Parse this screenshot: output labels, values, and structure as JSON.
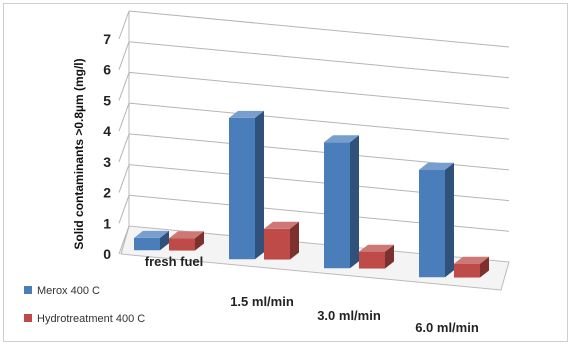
{
  "chart_data": {
    "type": "bar",
    "ylabel": "Solid contaminants >0.8µm (mg/l)",
    "ylim": [
      0,
      7
    ],
    "yticks": [
      "0",
      "1",
      "2",
      "3",
      "4",
      "5",
      "6",
      "7"
    ],
    "categories": [
      "fresh fuel",
      "1.5 ml/min",
      "3.0 ml/min",
      "6.0 ml/min"
    ],
    "series": [
      {
        "name": "Merox 400  C",
        "values": [
          0.4,
          4.6,
          4.1,
          3.5
        ],
        "color": "#4a7ebb"
      },
      {
        "name": "Hydrotreatment 400  C",
        "values": [
          0.4,
          1.0,
          0.55,
          0.45
        ],
        "color": "#be4b48"
      }
    ],
    "grid": true,
    "legend_position": "bottom-left"
  }
}
